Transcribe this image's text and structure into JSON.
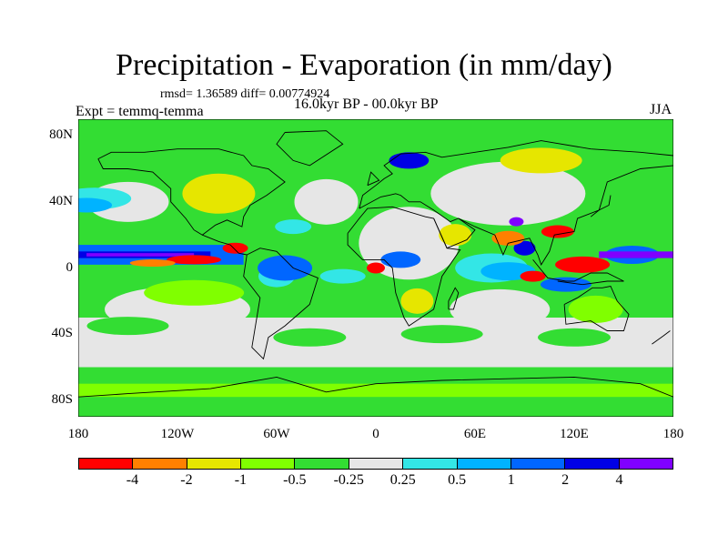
{
  "title": "Precipitation - Evaporation (in mm/day)",
  "stats_text": "rmsd= 1.36589  diff= 0.00774924",
  "experiment_text": "Expt = temmq-temma",
  "period_text": "16.0kyr BP - 00.0kyr BP",
  "season_text": "JJA",
  "axes": {
    "x_ticks": [
      "180",
      "120W",
      "60W",
      "0",
      "60E",
      "120E",
      "180"
    ],
    "y_ticks": [
      "80N",
      "40N",
      "0",
      "40S",
      "80S"
    ]
  },
  "colorbar": {
    "colors": [
      "#ff0000",
      "#ff8000",
      "#e6e600",
      "#80ff00",
      "#33dd33",
      "#e6e6e6",
      "#33e6e6",
      "#00b3ff",
      "#0066ff",
      "#0000e6",
      "#8000ff"
    ],
    "labels": [
      "-4",
      "-2",
      "-1",
      "-0.5",
      "-0.25",
      "0.25",
      "0.5",
      "1",
      "2",
      "4"
    ]
  },
  "map_colors": {
    "ocean_base": "#33dd33",
    "neutral": "#e6e6e6",
    "coastline": "#000000",
    "frame": "#000000"
  }
}
